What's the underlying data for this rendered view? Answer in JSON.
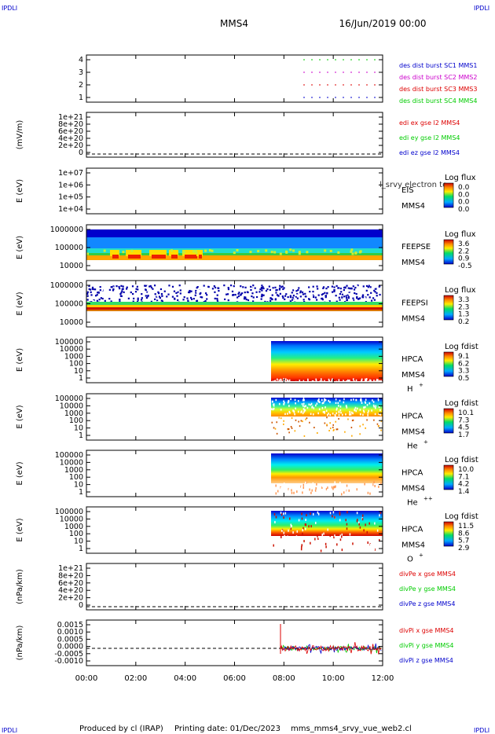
{
  "header": {
    "corner_left": "IPDLI",
    "corner_right": "IPDLI",
    "title": "MMS4",
    "date": "16/Jun/2019 00:00"
  },
  "footer": {
    "produced": "Produced by cl (IRAP)",
    "printing": "Printing date: 01/Dec/2023",
    "file": "mms_mms4_srvy_vue_web2.cl",
    "corner_left": "IPDLI",
    "corner_right": "IPDLI"
  },
  "colors": {
    "frame": "#000000",
    "red": "#dd0000",
    "green": "#00cc00",
    "blue": "#0000cc",
    "magenta": "#cc00cc"
  },
  "chart_data": {
    "type": "heatmap",
    "x_ticks": [
      "00:00",
      "02:00",
      "04:00",
      "06:00",
      "08:00",
      "10:00",
      "12:00"
    ],
    "x_range_hours": [
      0,
      12
    ],
    "panels": [
      {
        "id": "burst",
        "kind": "lines",
        "ylabel": "",
        "yticks": [
          "4",
          "3",
          "2",
          "1"
        ],
        "legend": [
          {
            "text": "des dist burst SC1 MMS1",
            "color": "#0000cc"
          },
          {
            "text": "des dist burst SC2 MMS2",
            "color": "#cc00cc"
          },
          {
            "text": "des dist burst SC3 MMS3",
            "color": "#dd0000"
          },
          {
            "text": "des dist burst SC4 MMS4",
            "color": "#00cc00"
          }
        ]
      },
      {
        "id": "edi",
        "kind": "lines",
        "ylabel": "(mV/m)",
        "yticks": [
          "1e+21",
          "8e+20",
          "6e+20",
          "4e+20",
          "2e+20",
          "0"
        ],
        "legend": [
          {
            "text": "edi ex gse l2 MMS4",
            "color": "#dd0000"
          },
          {
            "text": "edi ey gse l2 MMS4",
            "color": "#00cc00"
          },
          {
            "text": "edi ez gse l2 MMS4",
            "color": "#0000cc"
          }
        ]
      },
      {
        "id": "eis",
        "kind": "spectrogram",
        "ylabel": "E (eV)",
        "yticks": [
          "1e+07",
          "1e+06",
          "1e+05",
          "1e+04"
        ],
        "label1": "EIS",
        "label2": "MMS4",
        "overlay": "l_srvy electron to",
        "cb_title": "Log flux",
        "cb_ticks": [
          "0.0",
          "0.0",
          "0.0",
          "0.0"
        ]
      },
      {
        "id": "feepse",
        "kind": "spectrogram",
        "ylabel": "E (eV)",
        "yticks": [
          "1000000",
          "100000",
          "10000"
        ],
        "label1": "FEEPSE",
        "label2": "MMS4",
        "cb_title": "Log flux",
        "cb_ticks": [
          "3.6",
          "2.2",
          "0.9",
          "-0.5"
        ]
      },
      {
        "id": "feepsi",
        "kind": "spectrogram",
        "ylabel": "E (eV)",
        "yticks": [
          "1000000",
          "100000",
          "10000"
        ],
        "label1": "FEEPSI",
        "label2": "MMS4",
        "cb_title": "Log flux",
        "cb_ticks": [
          "3.3",
          "2.3",
          "1.3",
          "0.2"
        ]
      },
      {
        "id": "hpca_h",
        "kind": "spectrogram",
        "ylabel": "E (eV)",
        "yticks": [
          "100000",
          "10000",
          "1000",
          "100",
          "10",
          "1"
        ],
        "label1": "HPCA",
        "label2": "MMS4",
        "species": "H",
        "charge": "+",
        "cb_title": "Log fdist",
        "cb_ticks": [
          "9.1",
          "6.2",
          "3.3",
          "0.5"
        ]
      },
      {
        "id": "hpca_he1",
        "kind": "spectrogram",
        "ylabel": "E (eV)",
        "yticks": [
          "100000",
          "10000",
          "1000",
          "100",
          "10",
          "1"
        ],
        "label1": "HPCA",
        "label2": "MMS4",
        "species": "He",
        "charge": "+",
        "cb_title": "Log fdist",
        "cb_ticks": [
          "10.1",
          "7.3",
          "4.5",
          "1.7"
        ]
      },
      {
        "id": "hpca_he2",
        "kind": "spectrogram",
        "ylabel": "E (eV)",
        "yticks": [
          "100000",
          "10000",
          "1000",
          "100",
          "10",
          "1"
        ],
        "label1": "HPCA",
        "label2": "MMS4",
        "species": "He",
        "charge": "++",
        "cb_title": "Log fdist",
        "cb_ticks": [
          "10.0",
          "7.1",
          "4.2",
          "1.4"
        ]
      },
      {
        "id": "hpca_o",
        "kind": "spectrogram",
        "ylabel": "E (eV)",
        "yticks": [
          "100000",
          "10000",
          "1000",
          "100",
          "10",
          "1"
        ],
        "label1": "HPCA",
        "label2": "MMS4",
        "species": "O",
        "charge": "+",
        "cb_title": "Log fdist",
        "cb_ticks": [
          "11.5",
          "8.6",
          "5.7",
          "2.9"
        ]
      },
      {
        "id": "divpe",
        "kind": "lines",
        "ylabel": "(nPa/km)",
        "yticks": [
          "1e+21",
          "8e+20",
          "6e+20",
          "4e+20",
          "2e+20",
          "0"
        ],
        "legend": [
          {
            "text": "divPe x gse MMS4",
            "color": "#dd0000"
          },
          {
            "text": "divPe y gse MMS4",
            "color": "#00cc00"
          },
          {
            "text": "divPe z gse MMS4",
            "color": "#0000cc"
          }
        ]
      },
      {
        "id": "divpi",
        "kind": "lines",
        "ylabel": "(nPa/km)",
        "yticks": [
          "0.0015",
          "0.0010",
          "0.0005",
          "0.0000",
          "-0.0005",
          "-0.0010"
        ],
        "legend": [
          {
            "text": "divPi x gse MMS4",
            "color": "#dd0000"
          },
          {
            "text": "divPi y gse MMS4",
            "color": "#00cc00"
          },
          {
            "text": "divPi z gse MMS4",
            "color": "#0000cc"
          }
        ]
      }
    ]
  }
}
